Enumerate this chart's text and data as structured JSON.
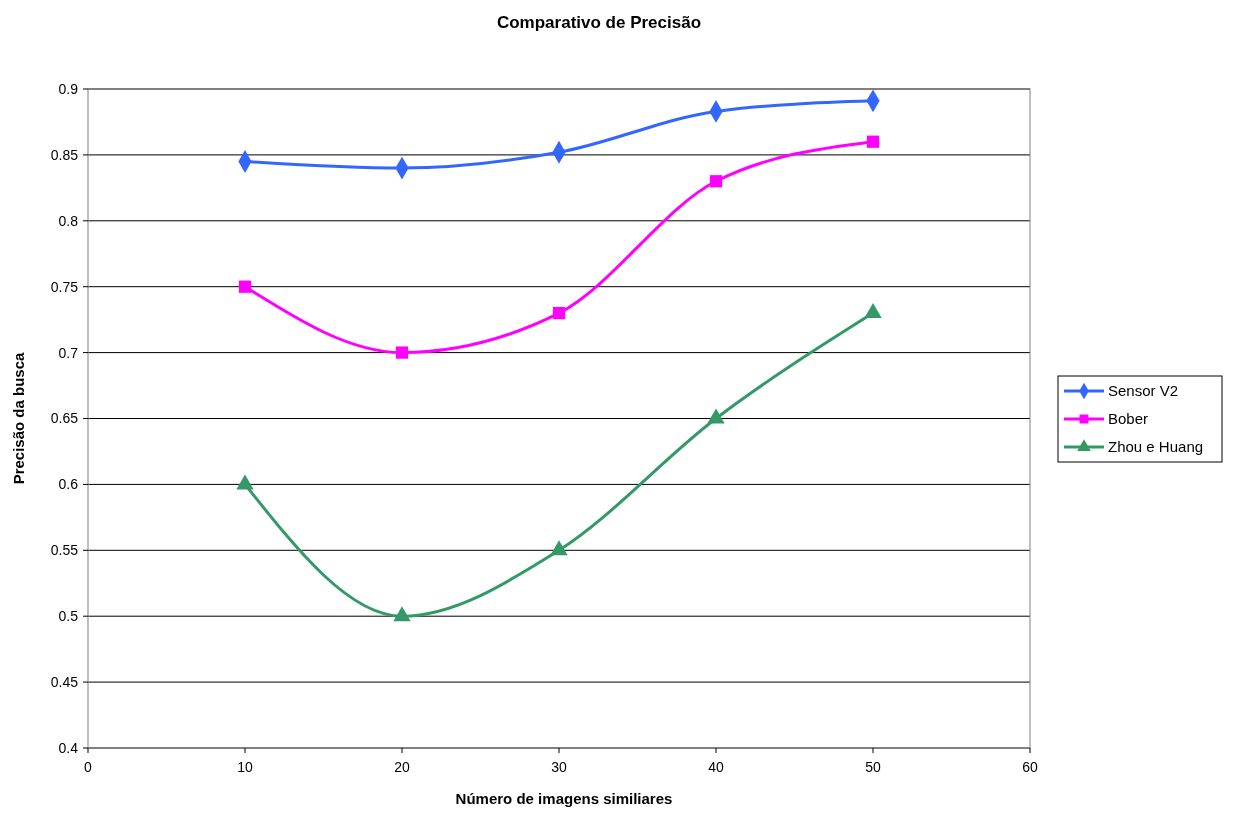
{
  "chart_data": {
    "type": "line",
    "title": "Comparativo de Precisão",
    "xlabel": "Número de imagens similiares",
    "ylabel": "Precisão da busca",
    "x": [
      10,
      20,
      30,
      40,
      50
    ],
    "series": [
      {
        "name": "Sensor V2",
        "color": "#3366ff",
        "marker": "diamond",
        "values": [
          0.845,
          0.84,
          0.852,
          0.883,
          0.891
        ]
      },
      {
        "name": "Bober",
        "color": "#ff00ff",
        "marker": "square",
        "values": [
          0.75,
          0.7,
          0.73,
          0.83,
          0.86
        ]
      },
      {
        "name": "Zhou e Huang",
        "color": "#339966",
        "marker": "triangle",
        "values": [
          0.6,
          0.5,
          0.55,
          0.65,
          0.73
        ]
      }
    ],
    "xlim": [
      0,
      60
    ],
    "xticks": [
      0,
      10,
      20,
      30,
      40,
      50,
      60
    ],
    "ylim": [
      0.4,
      0.9
    ],
    "yticks": [
      0.4,
      0.45,
      0.5,
      0.55,
      0.6,
      0.65,
      0.7,
      0.75,
      0.8,
      0.85,
      0.9
    ],
    "grid": "y",
    "legend": "right"
  }
}
